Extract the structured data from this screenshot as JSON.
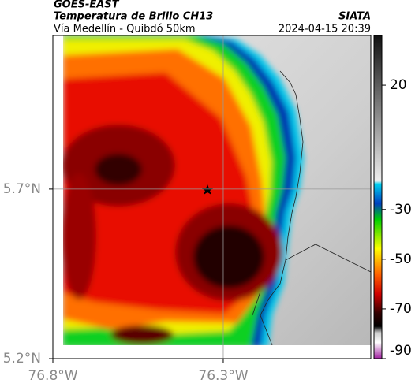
{
  "header": {
    "title": "GOES-EAST",
    "subtitle": "Temperatura de Brillo CH13",
    "location": "Vía Medellín - Quibdó 50km",
    "source": "SIATA",
    "timestamp": "2024-04-15 20:39"
  },
  "map": {
    "xlim": [
      -76.8,
      -75.867
    ],
    "ylim": [
      5.2,
      6.153
    ],
    "xticks": [
      {
        "value": -76.8,
        "label": "76.8°W"
      },
      {
        "value": -76.3,
        "label": "76.3°W"
      }
    ],
    "yticks": [
      {
        "value": 5.2,
        "label": "5.2°N"
      },
      {
        "value": 5.7,
        "label": "5.7°N"
      }
    ],
    "grid": true
  },
  "colorbar": {
    "clim": [
      -90,
      40
    ],
    "ticks": [
      20,
      -30,
      -50,
      -70,
      -90
    ]
  }
}
